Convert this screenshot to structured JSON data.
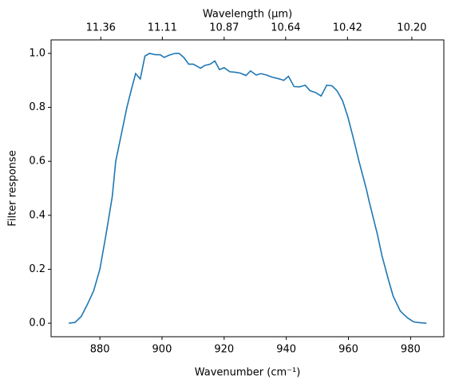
{
  "chart_data": {
    "type": "line",
    "x_label": "Wavenumber (cm⁻¹)",
    "y_label": "Filter response",
    "x2_label": "Wavelength (μm)",
    "xlim": [
      864.3,
      990.7
    ],
    "ylim": [
      -0.05,
      1.05
    ],
    "xticks": [
      880,
      900,
      920,
      940,
      960,
      980
    ],
    "yticks": [
      {
        "value": 0,
        "label": "0.0"
      },
      {
        "value": 0.2,
        "label": "0.2"
      },
      {
        "value": 0.4,
        "label": "0.4"
      },
      {
        "value": 0.6,
        "label": "0.6"
      },
      {
        "value": 0.8,
        "label": "0.8"
      },
      {
        "value": 1,
        "label": "1.0"
      }
    ],
    "x2ticks": [
      {
        "value": 880.3,
        "label": "11.36"
      },
      {
        "value": 900.1,
        "label": "11.11"
      },
      {
        "value": 920,
        "label": "10.87"
      },
      {
        "value": 939.8,
        "label": "10.64"
      },
      {
        "value": 959.7,
        "label": "10.42"
      },
      {
        "value": 980.4,
        "label": "10.20"
      }
    ],
    "series": [
      {
        "color": "#1f77b4",
        "x": [
          870,
          872,
          874,
          876,
          878,
          880,
          882,
          884,
          885.1,
          886.9,
          888.7,
          890,
          891.5,
          893,
          894.5,
          896,
          897.9,
          899.4,
          900.7,
          902.2,
          904.2,
          905.5,
          907,
          908.6,
          910.1,
          912.4,
          913.7,
          915.5,
          917,
          918.5,
          920,
          921.8,
          923.6,
          925.2,
          927,
          928.5,
          930.3,
          931.8,
          933.6,
          935.4,
          937.9,
          939.2,
          940.7,
          942.5,
          944.3,
          946.1,
          947.6,
          949.4,
          951.2,
          953,
          954.7,
          956.3,
          958.1,
          959.8,
          961.6,
          963.4,
          965.7,
          966.7,
          969.3,
          970.8,
          972.9,
          974.4,
          976.7,
          979,
          981,
          983,
          985.1
        ],
        "values": [
          0.0,
          0.003,
          0.025,
          0.07,
          0.12,
          0.2,
          0.33,
          0.47,
          0.6,
          0.7,
          0.8,
          0.86,
          0.925,
          0.905,
          0.99,
          1.0,
          0.995,
          0.995,
          0.985,
          0.993,
          1.0,
          1.0,
          0.985,
          0.96,
          0.96,
          0.945,
          0.955,
          0.96,
          0.972,
          0.94,
          0.947,
          0.932,
          0.93,
          0.927,
          0.918,
          0.935,
          0.92,
          0.925,
          0.92,
          0.912,
          0.905,
          0.9,
          0.915,
          0.877,
          0.876,
          0.882,
          0.862,
          0.855,
          0.842,
          0.882,
          0.88,
          0.862,
          0.825,
          0.765,
          0.685,
          0.6,
          0.5,
          0.45,
          0.33,
          0.25,
          0.16,
          0.1,
          0.045,
          0.02,
          0.005,
          0.002,
          0.0
        ]
      }
    ]
  }
}
